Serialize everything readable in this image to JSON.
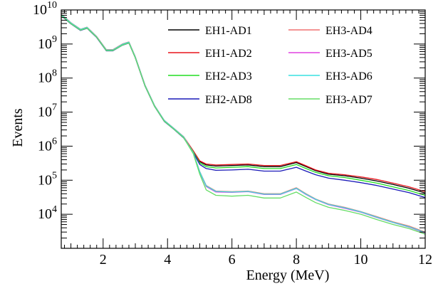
{
  "chart_data": {
    "type": "line",
    "xlabel": "Energy (MeV)",
    "ylabel": "Events",
    "xlim": [
      0.7,
      12
    ],
    "ylim": [
      1000,
      10000000000
    ],
    "y_scale": "log",
    "grid": false,
    "legend_position": "top-right",
    "x_ticks": [
      2,
      4,
      6,
      8,
      10,
      12
    ],
    "x_tick_labels": [
      "2",
      "4",
      "6",
      "8",
      "10",
      "12"
    ],
    "y_ticks": [
      10000,
      100000,
      1000000,
      10000000,
      100000000,
      1000000000,
      10000000000
    ],
    "y_tick_labels": [
      {
        "base": "10",
        "exp": "4"
      },
      {
        "base": "10",
        "exp": "5"
      },
      {
        "base": "10",
        "exp": "6"
      },
      {
        "base": "10",
        "exp": "7"
      },
      {
        "base": "10",
        "exp": "8"
      },
      {
        "base": "10",
        "exp": "9"
      },
      {
        "base": "10",
        "exp": "10"
      }
    ],
    "x": [
      0.7,
      1.0,
      1.3,
      1.5,
      1.8,
      2.1,
      2.3,
      2.6,
      2.8,
      3.0,
      3.3,
      3.6,
      3.9,
      4.2,
      4.5,
      4.8,
      5.0,
      5.2,
      5.5,
      6.0,
      6.5,
      7.0,
      7.5,
      8.0,
      8.3,
      8.6,
      9.0,
      9.5,
      10.0,
      10.5,
      11.0,
      11.5,
      12.0
    ],
    "series": [
      {
        "name": "EH1-AD1",
        "color": "#000000",
        "values": [
          7000000000,
          4000000000,
          2600000000,
          3000000000,
          1600000000,
          650000000,
          650000000,
          950000000,
          1100000000,
          400000000,
          60000000,
          15000000,
          5500000,
          3200000,
          1800000,
          700000,
          350000,
          280000,
          260000,
          270000,
          280000,
          250000,
          250000,
          330000,
          250000,
          190000,
          150000,
          135000,
          115000,
          95000,
          75000,
          58000,
          42000
        ]
      },
      {
        "name": "EH1-AD2",
        "color": "#e8141c",
        "values": [
          7500000000,
          4200000000,
          2700000000,
          3100000000,
          1650000000,
          680000000,
          680000000,
          1000000000,
          1150000000,
          420000000,
          62000000,
          15500000,
          5700000,
          3300000,
          1900000,
          730000,
          370000,
          300000,
          280000,
          290000,
          300000,
          270000,
          270000,
          350000,
          265000,
          200000,
          160000,
          145000,
          125000,
          105000,
          82000,
          64000,
          46000
        ]
      },
      {
        "name": "EH2-AD3",
        "color": "#22dd22",
        "values": [
          7000000000,
          4000000000,
          2600000000,
          3000000000,
          1600000000,
          650000000,
          650000000,
          950000000,
          1100000000,
          400000000,
          60000000,
          15000000,
          5500000,
          3200000,
          1800000,
          680000,
          320000,
          250000,
          230000,
          240000,
          250000,
          220000,
          220000,
          290000,
          220000,
          170000,
          135000,
          120000,
          100000,
          82000,
          64000,
          50000,
          36000
        ]
      },
      {
        "name": "EH2-AD8",
        "color": "#1a1ab8",
        "values": [
          6800000000,
          3900000000,
          2500000000,
          2900000000,
          1550000000,
          630000000,
          630000000,
          920000000,
          1070000000,
          390000000,
          58000000,
          14500000,
          5300000,
          3100000,
          1750000,
          650000,
          290000,
          220000,
          195000,
          200000,
          210000,
          185000,
          185000,
          240000,
          185000,
          145000,
          115000,
          100000,
          85000,
          70000,
          55000,
          43000,
          31000
        ]
      },
      {
        "name": "EH3-AD4",
        "color": "#f07070",
        "values": [
          7500000000,
          4200000000,
          2700000000,
          3100000000,
          1650000000,
          680000000,
          680000000,
          1000000000,
          1150000000,
          420000000,
          62000000,
          15500000,
          5700000,
          3300000,
          1900000,
          650000,
          180000,
          70000,
          48000,
          46000,
          48000,
          40000,
          40000,
          60000,
          40000,
          28000,
          20000,
          16000,
          12000,
          8500,
          6000,
          4500,
          3000
        ]
      },
      {
        "name": "EH3-AD5",
        "color": "#e040e0",
        "values": [
          7200000000,
          4100000000,
          2650000000,
          3050000000,
          1620000000,
          660000000,
          660000000,
          970000000,
          1120000000,
          410000000,
          61000000,
          15200000,
          5600000,
          3250000,
          1850000,
          630000,
          170000,
          65000,
          45000,
          44000,
          46000,
          38000,
          38000,
          57000,
          38000,
          27000,
          19000,
          15000,
          11500,
          8000,
          5700,
          4200,
          2800
        ]
      },
      {
        "name": "EH3-AD6",
        "color": "#38e0e0",
        "values": [
          7300000000,
          4150000000,
          2680000000,
          3080000000,
          1630000000,
          665000000,
          665000000,
          980000000,
          1130000000,
          415000000,
          61500000,
          15300000,
          5650000,
          3280000,
          1870000,
          640000,
          175000,
          68000,
          47000,
          45000,
          47000,
          39000,
          39000,
          58000,
          39000,
          27500,
          19500,
          15500,
          11800,
          8200,
          5800,
          4300,
          2900
        ]
      },
      {
        "name": "EH3-AD7",
        "color": "#66dd66",
        "values": [
          6900000000,
          3950000000,
          2550000000,
          2950000000,
          1580000000,
          640000000,
          640000000,
          930000000,
          1080000000,
          395000000,
          59000000,
          14700000,
          5400000,
          3150000,
          1780000,
          600000,
          150000,
          52000,
          36000,
          34000,
          36000,
          30000,
          30000,
          45000,
          31000,
          22000,
          16000,
          13000,
          10000,
          7000,
          5000,
          3800,
          2600
        ]
      }
    ]
  }
}
